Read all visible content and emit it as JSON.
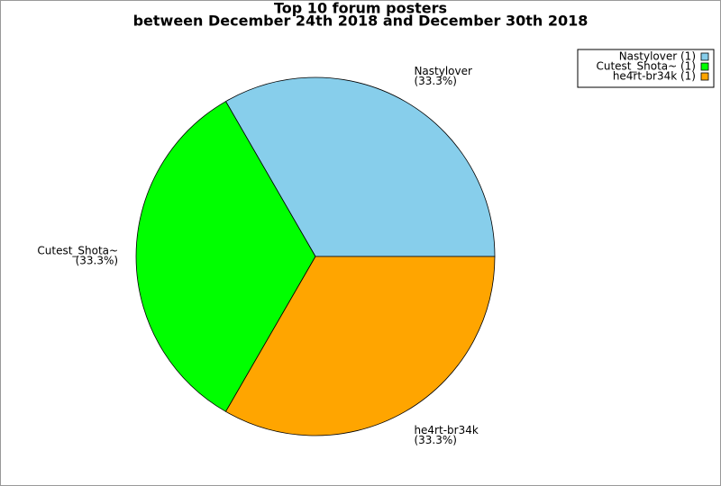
{
  "chart_data": {
    "type": "pie",
    "title": "Top 10 forum posters",
    "subtitle": "between December 24th 2018 and December 30th 2018",
    "categories": [
      "Nastylover",
      "Cutest_Shota~",
      "he4rt-br34k"
    ],
    "values": [
      33.3,
      33.3,
      33.3
    ],
    "value_labels": [
      "(33.3%)",
      "(33.3%)",
      "(33.3%)"
    ],
    "colors": [
      "#87ceeb",
      "#00ff00",
      "#ffa500"
    ],
    "legend_labels": [
      "Nastylover (1)",
      "Cutest_Shota~ (1)",
      "he4rt-br34k (1)"
    ],
    "legend": "top-right"
  }
}
